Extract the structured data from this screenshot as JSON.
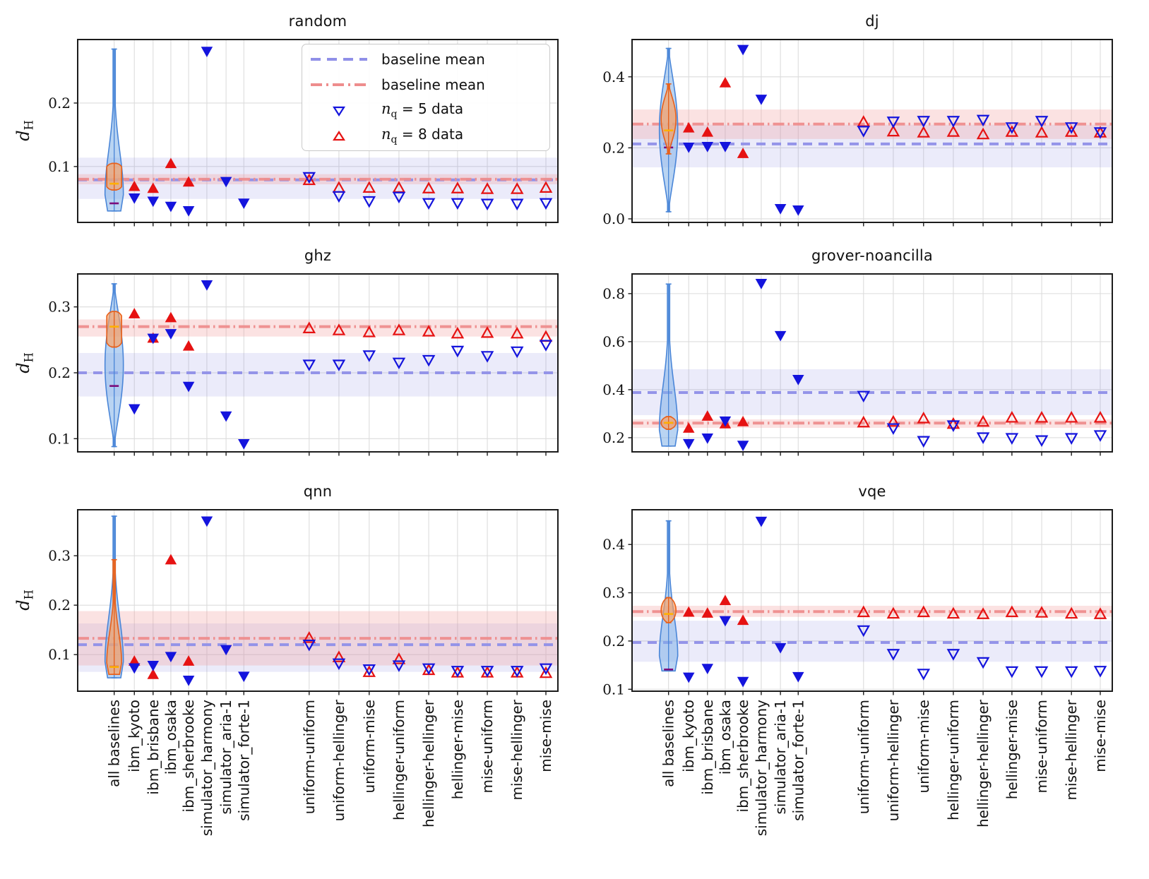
{
  "figure": {
    "background": "#ffffff"
  },
  "ylabel": {
    "base": "d",
    "sub": "H"
  },
  "colors": {
    "blue_marker": "#1414dd",
    "red_marker": "#e61212",
    "blue_violin_fill": "#7fb0e8",
    "blue_violin_stroke": "#4a86d8",
    "orange_violin_fill": "#ffa05c",
    "orange_violin_stroke": "#e8601a",
    "blue_baseline_line": "#8f8fe8",
    "red_baseline_line": "#ee8d8d",
    "blue_band": "#8282e0",
    "red_band": "#f2a0a0",
    "median_tick": "#7b0b7b",
    "mean_tick": "#ffb000",
    "grid": "#dcdcdc",
    "axis": "#1c1c1c"
  },
  "legend": {
    "items": [
      {
        "style": "dash-blue",
        "label": "baseline mean"
      },
      {
        "style": "dashdot-red",
        "label": "baseline mean"
      },
      {
        "style": "marker-blue",
        "var": "n",
        "sub": "q",
        "rest": " = 5 data"
      },
      {
        "style": "marker-red",
        "var": "n",
        "sub": "q",
        "rest": " = 8 data"
      }
    ]
  },
  "categories": [
    {
      "label": "all baselines",
      "xf": 0.076,
      "filled": true
    },
    {
      "label": "ibm_kyoto",
      "xf": 0.118,
      "filled": true
    },
    {
      "label": "ibm_brisbane",
      "xf": 0.157,
      "filled": true
    },
    {
      "label": "ibm_osaka",
      "xf": 0.194,
      "filled": true
    },
    {
      "label": "ibm_sherbrooke",
      "xf": 0.231,
      "filled": true
    },
    {
      "label": "simulator_harmony",
      "xf": 0.269,
      "filled": true
    },
    {
      "label": "simulator_aria-1",
      "xf": 0.309,
      "filled": true
    },
    {
      "label": "simulator_forte-1",
      "xf": 0.346,
      "filled": true
    },
    {
      "label": "uniform-uniform",
      "xf": 0.482,
      "filled": false
    },
    {
      "label": "uniform-hellinger",
      "xf": 0.544,
      "filled": false
    },
    {
      "label": "uniform-mise",
      "xf": 0.607,
      "filled": false
    },
    {
      "label": "hellinger-uniform",
      "xf": 0.669,
      "filled": false
    },
    {
      "label": "hellinger-hellinger",
      "xf": 0.731,
      "filled": false
    },
    {
      "label": "hellinger-mise",
      "xf": 0.791,
      "filled": false
    },
    {
      "label": "mise-uniform",
      "xf": 0.853,
      "filled": false
    },
    {
      "label": "mise-hellinger",
      "xf": 0.915,
      "filled": false
    },
    {
      "label": "mise-mise",
      "xf": 0.975,
      "filled": false
    }
  ],
  "chart_data": [
    {
      "type": "scatter",
      "title": "random",
      "ylim": [
        0.012,
        0.3
      ],
      "yticks": [
        0.1,
        0.2
      ],
      "legend": true,
      "baseline_blue": {
        "mean": 0.079,
        "band": [
          0.049,
          0.114
        ]
      },
      "baseline_red": {
        "mean": 0.08,
        "band": [
          0.072,
          0.088
        ]
      },
      "violins": [
        {
          "color": "blue",
          "lo": 0.03,
          "hi": 0.285,
          "profile": "funnel",
          "tick": 0.042,
          "tick_style": "median"
        },
        {
          "color": "orange",
          "lo": 0.063,
          "hi": 0.105,
          "profile": "box",
          "tick": 0.073,
          "tick_style": "mean"
        }
      ],
      "nq5": [
        null,
        0.051,
        0.046,
        0.038,
        0.031,
        0.282,
        0.077,
        0.043,
        0.084,
        0.054,
        0.046,
        0.053,
        0.043,
        0.043,
        0.042,
        0.042,
        0.043
      ],
      "nq8": [
        null,
        0.068,
        0.065,
        0.104,
        0.075,
        null,
        null,
        null,
        0.078,
        0.066,
        0.066,
        0.066,
        0.065,
        0.065,
        0.064,
        0.064,
        0.066
      ]
    },
    {
      "type": "scatter",
      "title": "dj",
      "ylim": [
        -0.01,
        0.505
      ],
      "yticks": [
        0.0,
        0.2,
        0.4
      ],
      "legend": false,
      "baseline_blue": {
        "mean": 0.211,
        "band": [
          0.145,
          0.265
        ]
      },
      "baseline_red": {
        "mean": 0.267,
        "band": [
          0.225,
          0.308
        ]
      },
      "violins": [
        {
          "color": "blue",
          "lo": 0.02,
          "hi": 0.48,
          "profile": "spindle",
          "tick": 0.201,
          "tick_style": "median"
        },
        {
          "color": "orange",
          "lo": 0.183,
          "hi": 0.38,
          "profile": "spindle",
          "tick": 0.249,
          "tick_style": "mean"
        }
      ],
      "nq5": [
        null,
        0.203,
        0.205,
        0.205,
        0.478,
        0.338,
        0.03,
        0.026,
        0.249,
        0.275,
        0.277,
        0.277,
        0.28,
        0.259,
        0.277,
        0.259,
        0.245
      ],
      "nq8": [
        null,
        0.255,
        0.243,
        0.382,
        0.183,
        null,
        null,
        null,
        0.272,
        0.245,
        0.242,
        0.244,
        0.237,
        0.244,
        0.242,
        0.244,
        0.242
      ]
    },
    {
      "type": "scatter",
      "title": "ghz",
      "ylim": [
        0.08,
        0.35
      ],
      "yticks": [
        0.1,
        0.2,
        0.3
      ],
      "legend": false,
      "baseline_blue": {
        "mean": 0.2,
        "band": [
          0.164,
          0.23
        ]
      },
      "baseline_red": {
        "mean": 0.27,
        "band": [
          0.255,
          0.281
        ]
      },
      "violins": [
        {
          "color": "blue",
          "lo": 0.088,
          "hi": 0.335,
          "profile": "spindle",
          "tick": 0.18,
          "tick_style": "median"
        },
        {
          "color": "orange",
          "lo": 0.239,
          "hi": 0.293,
          "profile": "box",
          "tick": 0.27,
          "tick_style": "mean"
        }
      ],
      "nq5": [
        null,
        0.146,
        0.253,
        0.26,
        0.18,
        0.334,
        0.135,
        0.093,
        0.213,
        0.213,
        0.227,
        0.216,
        0.22,
        0.234,
        0.226,
        0.233,
        0.243
      ],
      "nq8": [
        null,
        0.289,
        0.252,
        0.283,
        0.24,
        null,
        null,
        null,
        0.267,
        0.264,
        0.261,
        0.264,
        0.262,
        0.259,
        0.26,
        0.259,
        0.254
      ]
    },
    {
      "type": "scatter",
      "title": "grover-noancilla",
      "ylim": [
        0.141,
        0.882
      ],
      "yticks": [
        0.2,
        0.4,
        0.6,
        0.8
      ],
      "legend": false,
      "baseline_blue": {
        "mean": 0.388,
        "band": [
          0.294,
          0.485
        ]
      },
      "baseline_red": {
        "mean": 0.261,
        "band": [
          0.241,
          0.276
        ]
      },
      "violins": [
        {
          "color": "blue",
          "lo": 0.165,
          "hi": 0.84,
          "profile": "funnel",
          "tick": 0.262,
          "tick_style": "median"
        },
        {
          "color": "orange",
          "lo": 0.235,
          "hi": 0.288,
          "profile": "blob",
          "tick": 0.262,
          "tick_style": "mean"
        }
      ],
      "nq5": [
        null,
        0.177,
        0.2,
        0.271,
        0.17,
        0.844,
        0.627,
        0.444,
        0.376,
        0.241,
        0.188,
        0.253,
        0.203,
        0.2,
        0.191,
        0.2,
        0.212
      ],
      "nq8": [
        null,
        0.238,
        0.288,
        0.256,
        0.265,
        null,
        null,
        null,
        0.262,
        0.265,
        0.279,
        0.256,
        0.265,
        0.282,
        0.282,
        0.282,
        0.282
      ]
    },
    {
      "type": "scatter",
      "title": "qnn",
      "ylim": [
        0.026,
        0.393
      ],
      "yticks": [
        0.1,
        0.2,
        0.3
      ],
      "legend": false,
      "baseline_blue": {
        "mean": 0.12,
        "band": [
          0.065,
          0.163
        ]
      },
      "baseline_red": {
        "mean": 0.133,
        "band": [
          0.078,
          0.188
        ]
      },
      "violins": [
        {
          "color": "blue",
          "lo": 0.053,
          "hi": 0.38,
          "profile": "funnel",
          "tick": 0.076,
          "tick_style": "median"
        },
        {
          "color": "orange",
          "lo": 0.06,
          "hi": 0.292,
          "profile": "funnel",
          "tick": 0.075,
          "tick_style": "mean"
        }
      ],
      "nq5": [
        null,
        0.074,
        0.079,
        0.097,
        0.049,
        0.371,
        0.111,
        0.057,
        0.121,
        0.083,
        0.071,
        0.079,
        0.073,
        0.068,
        0.068,
        0.068,
        0.073
      ],
      "nq8": [
        null,
        0.086,
        0.059,
        0.291,
        0.086,
        null,
        null,
        null,
        0.133,
        0.094,
        0.064,
        0.09,
        0.068,
        0.063,
        0.063,
        0.063,
        0.062
      ]
    },
    {
      "type": "scatter",
      "title": "vqe",
      "ylim": [
        0.096,
        0.472
      ],
      "yticks": [
        0.1,
        0.2,
        0.3,
        0.4
      ],
      "legend": false,
      "baseline_blue": {
        "mean": 0.197,
        "band": [
          0.157,
          0.242
        ]
      },
      "baseline_red": {
        "mean": 0.261,
        "band": [
          0.25,
          0.273
        ]
      },
      "violins": [
        {
          "color": "blue",
          "lo": 0.138,
          "hi": 0.449,
          "profile": "funnel",
          "tick": 0.141,
          "tick_style": "median"
        },
        {
          "color": "orange",
          "lo": 0.238,
          "hi": 0.29,
          "profile": "blob",
          "tick": 0.256,
          "tick_style": "mean"
        }
      ],
      "nq5": [
        null,
        0.126,
        0.144,
        0.243,
        0.117,
        0.449,
        0.187,
        0.127,
        0.223,
        0.174,
        0.133,
        0.174,
        0.157,
        0.138,
        0.138,
        0.138,
        0.139
      ],
      "nq8": [
        null,
        0.259,
        0.257,
        0.283,
        0.242,
        null,
        null,
        null,
        0.259,
        0.256,
        0.259,
        0.256,
        0.255,
        0.259,
        0.258,
        0.256,
        0.255
      ]
    }
  ]
}
